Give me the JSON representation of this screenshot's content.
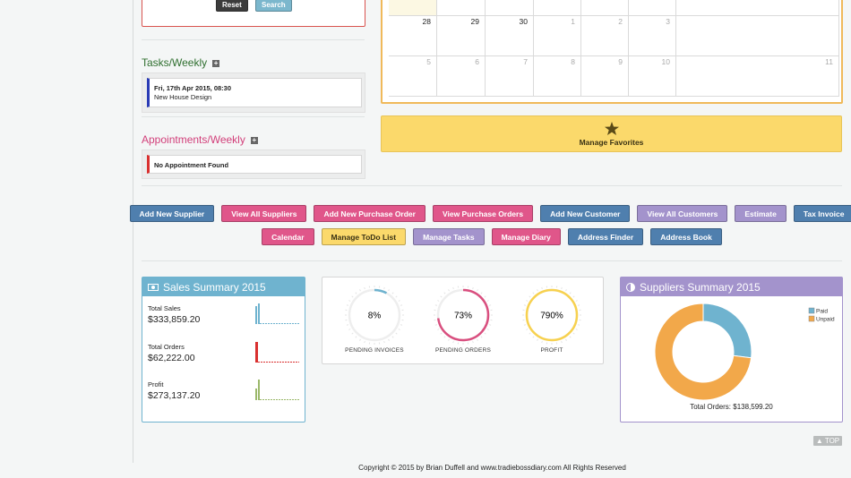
{
  "search_panel": {
    "buttons": [
      "Reset",
      "Search"
    ]
  },
  "tasks": {
    "title": "Tasks/Weekly",
    "items": [
      {
        "date": "Fri, 17th Apr 2015, 08:30",
        "name": "New House Design"
      }
    ]
  },
  "appointments": {
    "title": "Appointments/Weekly",
    "empty": "No Appointment Found"
  },
  "calendar": {
    "weeks": [
      [
        "28",
        "29",
        "30",
        "1",
        "2",
        "3"
      ],
      [
        "5",
        "6",
        "7",
        "8",
        "9",
        "10",
        "11"
      ]
    ]
  },
  "favorites": {
    "label": "Manage Favorites"
  },
  "quick_links": [
    [
      {
        "label": "Add New Supplier",
        "color": "#4f7fae"
      },
      {
        "label": "View All Suppliers",
        "color": "#e0568a"
      },
      {
        "label": "Add New Purchase Order",
        "color": "#e0568a"
      },
      {
        "label": "View Purchase Orders",
        "color": "#e0568a"
      },
      {
        "label": "Add New Customer",
        "color": "#4f7fae"
      },
      {
        "label": "View All Customers",
        "color": "#a393cc"
      },
      {
        "label": "Estimate",
        "color": "#a393cc"
      },
      {
        "label": "Tax Invoice",
        "color": "#4f7fae"
      }
    ],
    [
      {
        "label": "Calendar",
        "color": "#e0568a"
      },
      {
        "label": "Manage ToDo List",
        "color": "#fbd96b"
      },
      {
        "label": "Manage Tasks",
        "color": "#a393cc"
      },
      {
        "label": "Manage Diary",
        "color": "#e0568a"
      },
      {
        "label": "Address Finder",
        "color": "#4f7fae"
      },
      {
        "label": "Address Book",
        "color": "#4f7fae"
      }
    ]
  ],
  "sales_summary": {
    "title": "Sales Summary 2015",
    "items": [
      {
        "label": "Total Sales",
        "value": "$333,859.20"
      },
      {
        "label": "Total Orders",
        "value": "$62,222.00"
      },
      {
        "label": "Profit",
        "value": "$273,137.20"
      }
    ]
  },
  "progress": {
    "type": "gauge",
    "categories": [
      "PENDING INVOICES",
      "PENDING ORDERS",
      "PROFIT"
    ],
    "values": [
      8,
      73,
      790
    ],
    "value_labels": [
      "8%",
      "73%",
      "790%"
    ],
    "colors": [
      "#6fb3cf",
      "#d94f7f",
      "#f7d14f"
    ]
  },
  "suppliers_summary": {
    "title": "Suppliers Summary 2015",
    "chart": {
      "type": "donut",
      "series": [
        {
          "name": "Paid",
          "color": "#6fb3cf",
          "value": 27
        },
        {
          "name": "Unpaid",
          "color": "#f2a84a",
          "value": 73
        }
      ],
      "caption": "Total Orders: $138,599.20"
    }
  },
  "top_button": "TOP",
  "footer": "Copyright © 2015 by Brian Duffell and www.tradiebossdiary.com All Rights Reserved"
}
